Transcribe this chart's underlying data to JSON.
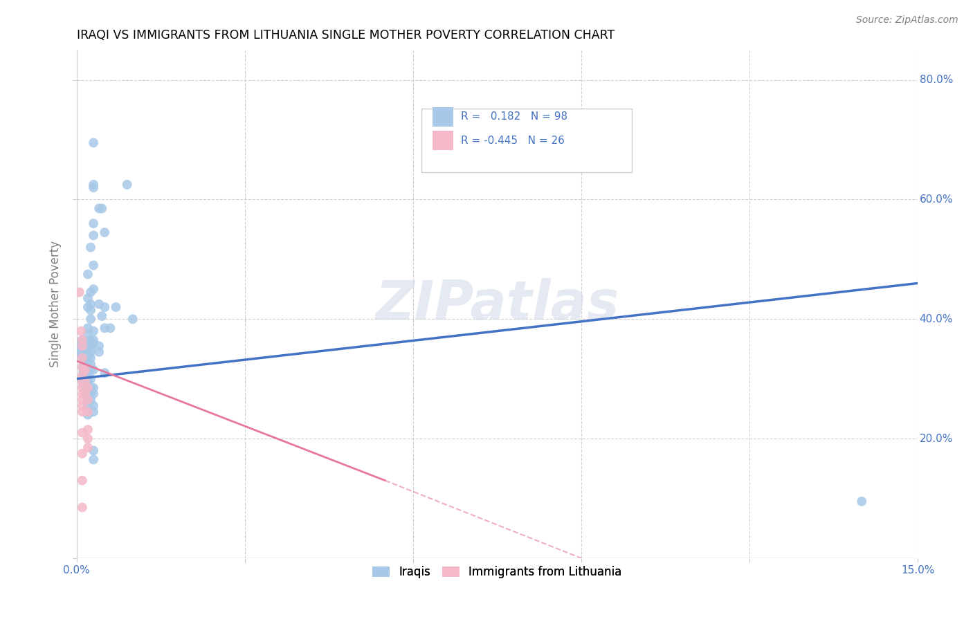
{
  "title": "IRAQI VS IMMIGRANTS FROM LITHUANIA SINGLE MOTHER POVERTY CORRELATION CHART",
  "source": "Source: ZipAtlas.com",
  "ylabel": "Single Mother Poverty",
  "xlim": [
    0.0,
    0.15
  ],
  "ylim": [
    0.0,
    0.85
  ],
  "iraqi_color": "#a8c8e8",
  "lithuania_color": "#f4b8c8",
  "iraqi_line_color": "#4472c4",
  "lithuania_line_color": "#e8789a",
  "watermark": "ZIPatlas",
  "iraqi_label": "Iraqis",
  "lithuania_label": "Immigrants from Lithuania",
  "iraqi_R": 0.182,
  "iraqi_N": 98,
  "lithuania_R": -0.445,
  "lithuania_N": 26,
  "iraqi_line_x0": 0.0,
  "iraqi_line_y0": 0.3,
  "iraqi_line_x1": 0.15,
  "iraqi_line_y1": 0.46,
  "lith_line_x0": 0.0,
  "lith_line_y0": 0.33,
  "lith_line_x1": 0.055,
  "lith_line_y1": 0.13,
  "lith_line_dashed_x0": 0.055,
  "lith_line_dashed_y0": 0.13,
  "lith_line_dashed_x1": 0.09,
  "lith_line_dashed_y1": 0.0,
  "iraqi_points": [
    [
      0.0005,
      0.345
    ],
    [
      0.0005,
      0.345
    ],
    [
      0.0008,
      0.36
    ],
    [
      0.001,
      0.365
    ],
    [
      0.001,
      0.345
    ],
    [
      0.001,
      0.34
    ],
    [
      0.0012,
      0.355
    ],
    [
      0.0012,
      0.34
    ],
    [
      0.0012,
      0.335
    ],
    [
      0.0012,
      0.33
    ],
    [
      0.0012,
      0.325
    ],
    [
      0.0012,
      0.32
    ],
    [
      0.0012,
      0.315
    ],
    [
      0.0012,
      0.31
    ],
    [
      0.0012,
      0.305
    ],
    [
      0.0012,
      0.3
    ],
    [
      0.0012,
      0.295
    ],
    [
      0.0012,
      0.29
    ],
    [
      0.0015,
      0.35
    ],
    [
      0.0015,
      0.34
    ],
    [
      0.0015,
      0.33
    ],
    [
      0.0015,
      0.325
    ],
    [
      0.0015,
      0.32
    ],
    [
      0.0015,
      0.315
    ],
    [
      0.0015,
      0.31
    ],
    [
      0.0015,
      0.305
    ],
    [
      0.0015,
      0.3
    ],
    [
      0.0015,
      0.295
    ],
    [
      0.0015,
      0.285
    ],
    [
      0.0015,
      0.28
    ],
    [
      0.002,
      0.475
    ],
    [
      0.002,
      0.435
    ],
    [
      0.002,
      0.42
    ],
    [
      0.002,
      0.385
    ],
    [
      0.002,
      0.375
    ],
    [
      0.002,
      0.36
    ],
    [
      0.002,
      0.35
    ],
    [
      0.002,
      0.345
    ],
    [
      0.002,
      0.335
    ],
    [
      0.002,
      0.325
    ],
    [
      0.002,
      0.315
    ],
    [
      0.002,
      0.31
    ],
    [
      0.002,
      0.3
    ],
    [
      0.002,
      0.295
    ],
    [
      0.002,
      0.285
    ],
    [
      0.002,
      0.275
    ],
    [
      0.002,
      0.265
    ],
    [
      0.002,
      0.255
    ],
    [
      0.002,
      0.24
    ],
    [
      0.0025,
      0.52
    ],
    [
      0.0025,
      0.445
    ],
    [
      0.0025,
      0.425
    ],
    [
      0.0025,
      0.415
    ],
    [
      0.0025,
      0.4
    ],
    [
      0.0025,
      0.365
    ],
    [
      0.0025,
      0.355
    ],
    [
      0.0025,
      0.35
    ],
    [
      0.0025,
      0.345
    ],
    [
      0.0025,
      0.335
    ],
    [
      0.0025,
      0.325
    ],
    [
      0.0025,
      0.315
    ],
    [
      0.0025,
      0.3
    ],
    [
      0.0025,
      0.285
    ],
    [
      0.0025,
      0.275
    ],
    [
      0.0025,
      0.265
    ],
    [
      0.003,
      0.695
    ],
    [
      0.003,
      0.625
    ],
    [
      0.003,
      0.62
    ],
    [
      0.003,
      0.56
    ],
    [
      0.003,
      0.54
    ],
    [
      0.003,
      0.49
    ],
    [
      0.003,
      0.45
    ],
    [
      0.003,
      0.38
    ],
    [
      0.003,
      0.365
    ],
    [
      0.003,
      0.36
    ],
    [
      0.003,
      0.315
    ],
    [
      0.003,
      0.285
    ],
    [
      0.003,
      0.275
    ],
    [
      0.003,
      0.255
    ],
    [
      0.003,
      0.245
    ],
    [
      0.003,
      0.18
    ],
    [
      0.003,
      0.165
    ],
    [
      0.004,
      0.585
    ],
    [
      0.004,
      0.425
    ],
    [
      0.004,
      0.355
    ],
    [
      0.004,
      0.345
    ],
    [
      0.0045,
      0.585
    ],
    [
      0.0045,
      0.405
    ],
    [
      0.005,
      0.545
    ],
    [
      0.005,
      0.42
    ],
    [
      0.005,
      0.385
    ],
    [
      0.005,
      0.31
    ],
    [
      0.006,
      0.385
    ],
    [
      0.007,
      0.42
    ],
    [
      0.009,
      0.625
    ],
    [
      0.01,
      0.4
    ],
    [
      0.14,
      0.095
    ]
  ],
  "lithuania_points": [
    [
      0.0005,
      0.445
    ],
    [
      0.0008,
      0.38
    ],
    [
      0.001,
      0.365
    ],
    [
      0.001,
      0.355
    ],
    [
      0.001,
      0.335
    ],
    [
      0.001,
      0.32
    ],
    [
      0.001,
      0.305
    ],
    [
      0.001,
      0.295
    ],
    [
      0.001,
      0.285
    ],
    [
      0.001,
      0.275
    ],
    [
      0.001,
      0.265
    ],
    [
      0.001,
      0.255
    ],
    [
      0.001,
      0.245
    ],
    [
      0.001,
      0.21
    ],
    [
      0.001,
      0.175
    ],
    [
      0.001,
      0.13
    ],
    [
      0.001,
      0.085
    ],
    [
      0.0015,
      0.315
    ],
    [
      0.0015,
      0.295
    ],
    [
      0.0015,
      0.275
    ],
    [
      0.002,
      0.285
    ],
    [
      0.002,
      0.265
    ],
    [
      0.002,
      0.245
    ],
    [
      0.002,
      0.215
    ],
    [
      0.002,
      0.2
    ],
    [
      0.002,
      0.185
    ]
  ]
}
